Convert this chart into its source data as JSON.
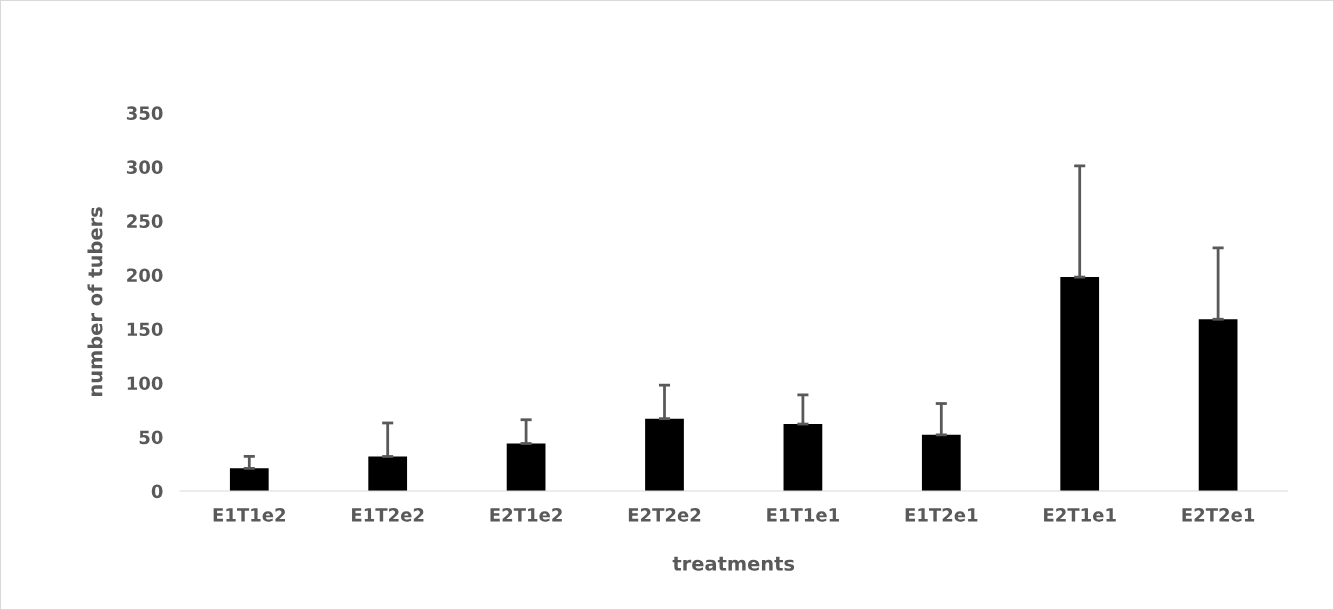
{
  "chart_data": {
    "type": "bar",
    "xlabel": "treatments",
    "ylabel": "number of tubers",
    "categories": [
      "E1T1e2",
      "E1T2e2",
      "E2T1e2",
      "E2T2e2",
      "E1T1e1",
      "E1T2e1",
      "E2T1e1",
      "E2T2e1"
    ],
    "values": [
      21,
      32,
      44,
      67,
      62,
      52,
      198,
      159
    ],
    "errors": [
      [
        21,
        32
      ],
      [
        32,
        63
      ],
      [
        44,
        66
      ],
      [
        67,
        98
      ],
      [
        62,
        89
      ],
      [
        52,
        81
      ],
      [
        198,
        301
      ],
      [
        159,
        225
      ]
    ],
    "color": "#000000",
    "ylim": [
      0,
      350
    ],
    "yticks": [
      0,
      50,
      100,
      150,
      200,
      250,
      300,
      350
    ],
    "grid": false
  }
}
